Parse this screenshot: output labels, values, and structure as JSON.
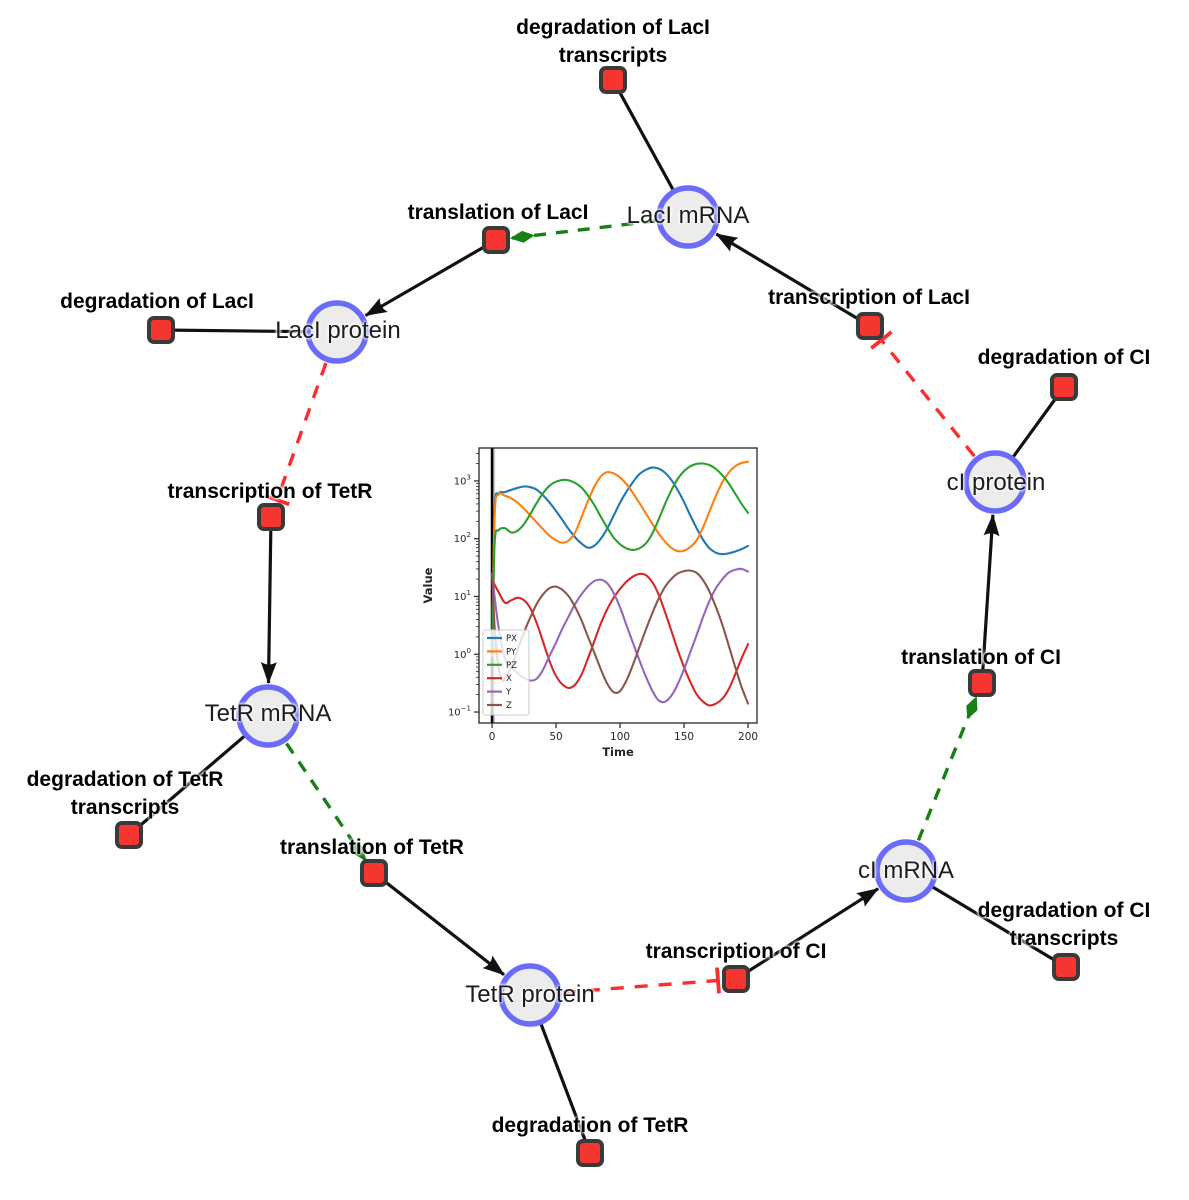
{
  "diagram": {
    "species": [
      {
        "label": "LacI mRNA"
      },
      {
        "label": "LacI protein"
      },
      {
        "label": "TetR mRNA"
      },
      {
        "label": "TetR protein"
      },
      {
        "label": "cI mRNA"
      },
      {
        "label": "cI protein"
      }
    ],
    "reactions": [
      {
        "label": "degradation of LacI",
        "label2": "transcripts"
      },
      {
        "label": "translation of LacI"
      },
      {
        "label": "degradation of LacI"
      },
      {
        "label": "transcription of TetR"
      },
      {
        "label": "degradation of TetR",
        "label2": "transcripts"
      },
      {
        "label": "translation of TetR"
      },
      {
        "label": "degradation of TetR"
      },
      {
        "label": "transcription of CI"
      },
      {
        "label": "degradation of CI",
        "label2": "transcripts"
      },
      {
        "label": "translation of CI"
      },
      {
        "label": "degradation of CI"
      },
      {
        "label": "transcription of LacI"
      }
    ],
    "colors": {
      "species_fill": "#ececec",
      "species_border": "#6b6bfa",
      "reaction_fill": "#f43530",
      "reaction_border": "#3a3a3a",
      "edge_black": "#111111",
      "edge_modifier_green": "#168016",
      "edge_inhibition_red": "#fb2d2d"
    }
  },
  "chart_data": {
    "type": "line",
    "xlabel": "Time",
    "ylabel": "Value",
    "y_scale": "log",
    "grid": false,
    "legend_position": "lower left",
    "x_ticks": [
      0,
      50,
      100,
      150,
      200
    ],
    "y_tick_exponents": [
      -1,
      0,
      1,
      2,
      3
    ],
    "xlim": [
      -10.2,
      207
    ],
    "ylim_exponents": [
      -1.19,
      3.57
    ],
    "vline_x": 0,
    "vspan": {
      "from": 0,
      "to": 3,
      "color": "#c9c9c9"
    },
    "series": [
      {
        "name": "PX",
        "color": "#1f77b4",
        "points": [
          [
            0,
            0.9
          ],
          [
            2,
            300
          ],
          [
            5,
            600
          ],
          [
            10,
            640
          ],
          [
            15,
            700
          ],
          [
            20,
            760
          ],
          [
            25,
            800
          ],
          [
            30,
            780
          ],
          [
            35,
            700
          ],
          [
            40,
            560
          ],
          [
            45,
            420
          ],
          [
            50,
            300
          ],
          [
            55,
            210
          ],
          [
            60,
            145
          ],
          [
            65,
            105
          ],
          [
            70,
            82
          ],
          [
            75,
            70
          ],
          [
            80,
            76
          ],
          [
            85,
            100
          ],
          [
            90,
            150
          ],
          [
            95,
            250
          ],
          [
            100,
            420
          ],
          [
            105,
            650
          ],
          [
            110,
            950
          ],
          [
            115,
            1300
          ],
          [
            120,
            1550
          ],
          [
            125,
            1700
          ],
          [
            130,
            1640
          ],
          [
            135,
            1400
          ],
          [
            140,
            1050
          ],
          [
            145,
            700
          ],
          [
            150,
            430
          ],
          [
            155,
            250
          ],
          [
            160,
            150
          ],
          [
            165,
            95
          ],
          [
            170,
            68
          ],
          [
            175,
            57
          ],
          [
            180,
            54
          ],
          [
            185,
            56
          ],
          [
            190,
            60
          ],
          [
            195,
            66
          ],
          [
            200,
            75
          ]
        ]
      },
      {
        "name": "PY",
        "color": "#ff7f0e",
        "points": [
          [
            0,
            0.9
          ],
          [
            2,
            250
          ],
          [
            5,
            580
          ],
          [
            10,
            555
          ],
          [
            15,
            500
          ],
          [
            20,
            420
          ],
          [
            25,
            330
          ],
          [
            30,
            250
          ],
          [
            35,
            190
          ],
          [
            40,
            145
          ],
          [
            45,
            112
          ],
          [
            50,
            94
          ],
          [
            55,
            85
          ],
          [
            60,
            94
          ],
          [
            65,
            130
          ],
          [
            70,
            240
          ],
          [
            75,
            450
          ],
          [
            80,
            800
          ],
          [
            85,
            1200
          ],
          [
            90,
            1420
          ],
          [
            95,
            1350
          ],
          [
            100,
            1150
          ],
          [
            105,
            880
          ],
          [
            110,
            620
          ],
          [
            115,
            420
          ],
          [
            120,
            280
          ],
          [
            125,
            185
          ],
          [
            130,
            125
          ],
          [
            135,
            90
          ],
          [
            140,
            70
          ],
          [
            145,
            61
          ],
          [
            150,
            62
          ],
          [
            155,
            72
          ],
          [
            160,
            95
          ],
          [
            165,
            160
          ],
          [
            170,
            300
          ],
          [
            175,
            560
          ],
          [
            180,
            950
          ],
          [
            185,
            1400
          ],
          [
            190,
            1800
          ],
          [
            195,
            2050
          ],
          [
            200,
            2150
          ]
        ]
      },
      {
        "name": "PZ",
        "color": "#2ca02c",
        "points": [
          [
            0,
            0.9
          ],
          [
            2,
            80
          ],
          [
            5,
            140
          ],
          [
            10,
            152
          ],
          [
            15,
            128
          ],
          [
            20,
            138
          ],
          [
            25,
            180
          ],
          [
            30,
            270
          ],
          [
            35,
            420
          ],
          [
            40,
            620
          ],
          [
            45,
            830
          ],
          [
            50,
            970
          ],
          [
            55,
            1040
          ],
          [
            60,
            1020
          ],
          [
            65,
            920
          ],
          [
            70,
            760
          ],
          [
            75,
            560
          ],
          [
            80,
            380
          ],
          [
            85,
            240
          ],
          [
            90,
            155
          ],
          [
            95,
            105
          ],
          [
            100,
            80
          ],
          [
            105,
            68
          ],
          [
            110,
            64
          ],
          [
            115,
            68
          ],
          [
            120,
            82
          ],
          [
            125,
            120
          ],
          [
            130,
            210
          ],
          [
            135,
            390
          ],
          [
            140,
            680
          ],
          [
            145,
            1080
          ],
          [
            150,
            1480
          ],
          [
            155,
            1800
          ],
          [
            160,
            1980
          ],
          [
            165,
            2000
          ],
          [
            170,
            1880
          ],
          [
            175,
            1600
          ],
          [
            180,
            1250
          ],
          [
            185,
            900
          ],
          [
            190,
            600
          ],
          [
            195,
            400
          ],
          [
            200,
            280
          ]
        ]
      },
      {
        "name": "X",
        "color": "#d62728",
        "points": [
          [
            0,
            20
          ],
          [
            2,
            16
          ],
          [
            5,
            12
          ],
          [
            10,
            7.8
          ],
          [
            15,
            8.6
          ],
          [
            20,
            9.5
          ],
          [
            25,
            8.6
          ],
          [
            30,
            6.2
          ],
          [
            35,
            3.4
          ],
          [
            40,
            1.6
          ],
          [
            45,
            0.75
          ],
          [
            50,
            0.42
          ],
          [
            55,
            0.3
          ],
          [
            60,
            0.26
          ],
          [
            65,
            0.3
          ],
          [
            70,
            0.45
          ],
          [
            75,
            0.85
          ],
          [
            80,
            1.7
          ],
          [
            85,
            3.4
          ],
          [
            90,
            6
          ],
          [
            95,
            9.5
          ],
          [
            100,
            13.5
          ],
          [
            105,
            18
          ],
          [
            110,
            22
          ],
          [
            115,
            24.5
          ],
          [
            120,
            23.5
          ],
          [
            125,
            18
          ],
          [
            130,
            11
          ],
          [
            135,
            5.5
          ],
          [
            140,
            2.6
          ],
          [
            145,
            1.2
          ],
          [
            150,
            0.6
          ],
          [
            155,
            0.33
          ],
          [
            160,
            0.2
          ],
          [
            165,
            0.15
          ],
          [
            170,
            0.13
          ],
          [
            175,
            0.14
          ],
          [
            180,
            0.17
          ],
          [
            185,
            0.25
          ],
          [
            190,
            0.45
          ],
          [
            195,
            0.85
          ],
          [
            200,
            1.5
          ]
        ]
      },
      {
        "name": "Y",
        "color": "#9467bd",
        "points": [
          [
            0,
            25
          ],
          [
            2,
            10
          ],
          [
            5,
            3
          ],
          [
            10,
            0.85
          ],
          [
            15,
            0.6
          ],
          [
            20,
            0.47
          ],
          [
            25,
            0.39
          ],
          [
            30,
            0.35
          ],
          [
            35,
            0.38
          ],
          [
            40,
            0.55
          ],
          [
            45,
            0.95
          ],
          [
            50,
            1.6
          ],
          [
            55,
            2.8
          ],
          [
            60,
            4.6
          ],
          [
            65,
            7.5
          ],
          [
            70,
            11
          ],
          [
            75,
            15
          ],
          [
            80,
            18.5
          ],
          [
            85,
            19.5
          ],
          [
            90,
            17
          ],
          [
            95,
            11.5
          ],
          [
            100,
            6.5
          ],
          [
            105,
            3.2
          ],
          [
            110,
            1.6
          ],
          [
            115,
            0.8
          ],
          [
            120,
            0.42
          ],
          [
            125,
            0.24
          ],
          [
            130,
            0.16
          ],
          [
            135,
            0.15
          ],
          [
            140,
            0.19
          ],
          [
            145,
            0.3
          ],
          [
            150,
            0.55
          ],
          [
            155,
            1.1
          ],
          [
            160,
            2.2
          ],
          [
            165,
            4.5
          ],
          [
            170,
            8.5
          ],
          [
            175,
            14
          ],
          [
            180,
            20
          ],
          [
            185,
            26
          ],
          [
            190,
            29
          ],
          [
            195,
            30
          ],
          [
            200,
            27
          ]
        ]
      },
      {
        "name": "Z",
        "color": "#8c564b",
        "points": [
          [
            0,
            25
          ],
          [
            2,
            3
          ],
          [
            5,
            0.6
          ],
          [
            8,
            0.35
          ],
          [
            10,
            0.38
          ],
          [
            15,
            0.6
          ],
          [
            20,
            1.2
          ],
          [
            25,
            2.4
          ],
          [
            30,
            4.4
          ],
          [
            35,
            7.5
          ],
          [
            40,
            11
          ],
          [
            45,
            14
          ],
          [
            50,
            14.8
          ],
          [
            55,
            13
          ],
          [
            60,
            10
          ],
          [
            65,
            6.5
          ],
          [
            70,
            3.8
          ],
          [
            75,
            2
          ],
          [
            80,
            1.05
          ],
          [
            85,
            0.55
          ],
          [
            90,
            0.31
          ],
          [
            95,
            0.22
          ],
          [
            100,
            0.23
          ],
          [
            105,
            0.35
          ],
          [
            110,
            0.65
          ],
          [
            115,
            1.3
          ],
          [
            120,
            2.6
          ],
          [
            125,
            5
          ],
          [
            130,
            9
          ],
          [
            135,
            14.5
          ],
          [
            140,
            20
          ],
          [
            145,
            25
          ],
          [
            150,
            27.5
          ],
          [
            155,
            28
          ],
          [
            160,
            25.5
          ],
          [
            165,
            19
          ],
          [
            170,
            12
          ],
          [
            175,
            6.5
          ],
          [
            180,
            3.2
          ],
          [
            185,
            1.4
          ],
          [
            190,
            0.6
          ],
          [
            195,
            0.27
          ],
          [
            200,
            0.14
          ]
        ]
      }
    ]
  }
}
